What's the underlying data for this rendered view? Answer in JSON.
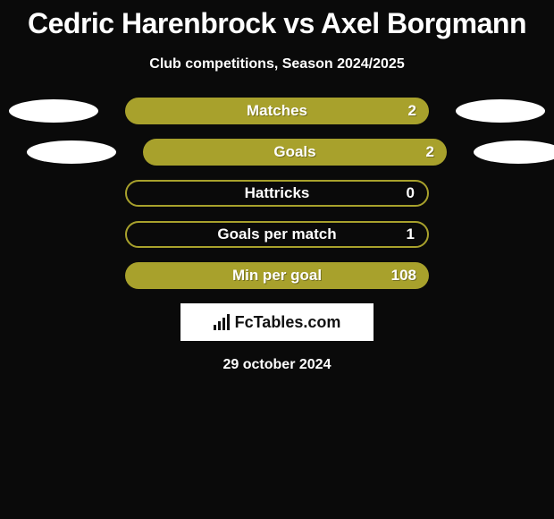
{
  "header": {
    "title": "Cedric Harenbrock vs Axel Borgmann",
    "subtitle": "Club competitions, Season 2024/2025"
  },
  "colors": {
    "accent": "#a8a12c",
    "accent_border": "#8d871e",
    "background": "#0a0a0a",
    "text": "#ffffff",
    "ellipse": "#ffffff"
  },
  "rows": [
    {
      "label": "Matches",
      "value": "2",
      "fill_pct": 100,
      "style": "solid",
      "left_ellipse": true,
      "right_ellipse": true
    },
    {
      "label": "Goals",
      "value": "2",
      "fill_pct": 100,
      "style": "solid",
      "left_ellipse": true,
      "right_ellipse": true
    },
    {
      "label": "Hattricks",
      "value": "0",
      "fill_pct": 0,
      "style": "outline",
      "left_ellipse": false,
      "right_ellipse": false
    },
    {
      "label": "Goals per match",
      "value": "1",
      "fill_pct": 0,
      "style": "outline",
      "left_ellipse": false,
      "right_ellipse": false
    },
    {
      "label": "Min per goal",
      "value": "108",
      "fill_pct": 100,
      "style": "solid",
      "left_ellipse": false,
      "right_ellipse": false
    }
  ],
  "branding": {
    "logo_text": "FcTables.com"
  },
  "footer": {
    "date": "29 october 2024"
  }
}
